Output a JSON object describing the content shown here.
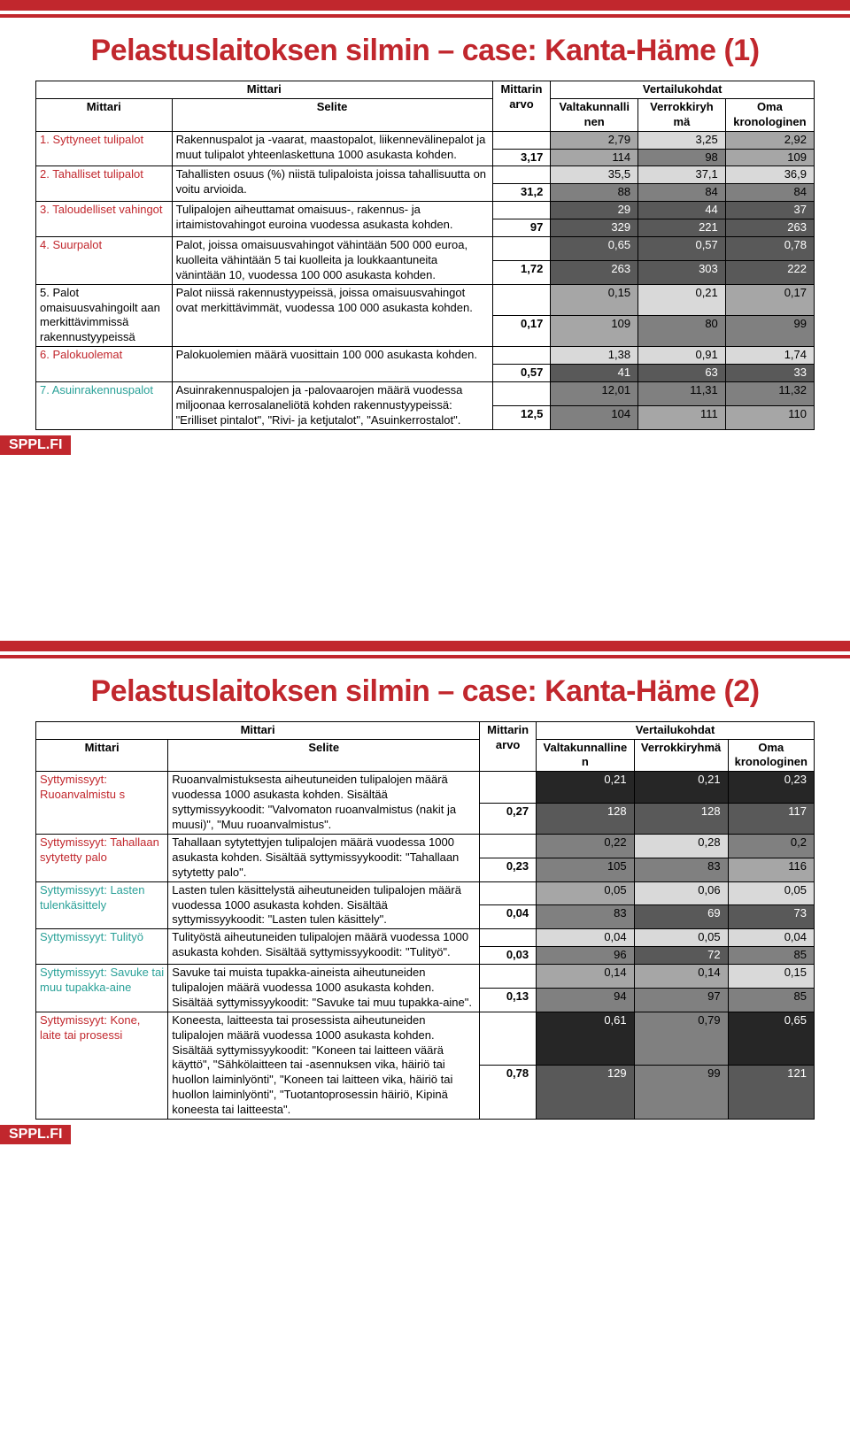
{
  "footer": "SPPL.FI",
  "colors": {
    "accent_red": "#c1272d",
    "accent_teal": "#2aa198",
    "shade_lt": "#d9d9d9",
    "shade_md": "#a6a6a6",
    "shade_dk": "#808080",
    "shade_vd": "#595959",
    "shade_blk": "#262626"
  },
  "slide1": {
    "title": "Pelastuslaitoksen silmin – case: Kanta-Häme (1)",
    "header_group_mittari": "Mittari",
    "header_group_vertailu": "Vertailukohdat",
    "col_mittari": "Mittari",
    "col_selite": "Selite",
    "col_arvo_l1": "Mittarin",
    "col_arvo_l2": "arvo",
    "col_v1_l1": "Valtakunnalli",
    "col_v1_l2": "nen",
    "col_v2_l1": "Verrokkiryh",
    "col_v2_l2": "mä",
    "col_v3_l1": "Oma",
    "col_v3_l2": "kronologinen",
    "rows": [
      {
        "label": "1. Syttyneet tulipalot",
        "label_cls": "label-red",
        "selite": "Rakennuspalot ja -vaarat, maastopalot, liikennevälinepalot ja muut tulipalot yhteenlaskettuna 1000 asukasta kohden.",
        "arvo": "3,17",
        "top": {
          "v1": "2,79",
          "v2": "3,25",
          "v3": "2,92",
          "s1": "sh-md",
          "s2": "sh-lt",
          "s3": "sh-md"
        },
        "bot": {
          "v1": "114",
          "v2": "98",
          "v3": "109",
          "s1": "sh-md",
          "s2": "sh-dk",
          "s3": "sh-md"
        }
      },
      {
        "label": "2. Tahalliset tulipalot",
        "label_cls": "label-red",
        "selite": "Tahallisten osuus (%) niistä tulipaloista joissa tahallisuutta on voitu arvioida.",
        "arvo": "31,2",
        "top": {
          "v1": "35,5",
          "v2": "37,1",
          "v3": "36,9",
          "s1": "sh-lt",
          "s2": "sh-lt",
          "s3": "sh-lt"
        },
        "bot": {
          "v1": "88",
          "v2": "84",
          "v3": "84",
          "s1": "sh-dk",
          "s2": "sh-dk",
          "s3": "sh-dk"
        }
      },
      {
        "label": "3. Taloudelliset vahingot",
        "label_cls": "label-red",
        "selite": "Tulipalojen aiheuttamat omaisuus-, rakennus- ja irtaimistovahingot euroina vuodessa asukasta kohden.",
        "arvo": "97",
        "top": {
          "v1": "29",
          "v2": "44",
          "v3": "37",
          "s1": "sh-vd",
          "s2": "sh-vd",
          "s3": "sh-vd"
        },
        "bot": {
          "v1": "329",
          "v2": "221",
          "v3": "263",
          "s1": "sh-vd",
          "s2": "sh-vd",
          "s3": "sh-vd"
        }
      },
      {
        "label": "4. Suurpalot",
        "label_cls": "label-red",
        "selite": "Palot, joissa omaisuusvahingot vähintään 500 000 euroa, kuolleita vähintään 5 tai kuolleita ja loukkaantuneita vänintään 10, vuodessa 100 000 asukasta kohden.",
        "arvo": "1,72",
        "top": {
          "v1": "0,65",
          "v2": "0,57",
          "v3": "0,78",
          "s1": "sh-vd",
          "s2": "sh-vd",
          "s3": "sh-vd"
        },
        "bot": {
          "v1": "263",
          "v2": "303",
          "v3": "222",
          "s1": "sh-vd",
          "s2": "sh-vd",
          "s3": "sh-vd"
        }
      },
      {
        "label": "5. Palot omaisuusvahingoilt aan merkittävimmissä rakennustyypeissä",
        "label_cls": "",
        "selite": "Palot niissä rakennustyypeissä, joissa omaisuusvahingot ovat merkittävimmät, vuodessa 100 000 asukasta kohden.",
        "arvo": "0,17",
        "top": {
          "v1": "0,15",
          "v2": "0,21",
          "v3": "0,17",
          "s1": "sh-md",
          "s2": "sh-lt",
          "s3": "sh-md"
        },
        "bot": {
          "v1": "109",
          "v2": "80",
          "v3": "99",
          "s1": "sh-md",
          "s2": "sh-dk",
          "s3": "sh-dk"
        }
      },
      {
        "label": "6. Palokuolemat",
        "label_cls": "label-red",
        "selite": "Palokuolemien määrä vuosittain 100 000 asukasta kohden.",
        "arvo": "0,57",
        "top": {
          "v1": "1,38",
          "v2": "0,91",
          "v3": "1,74",
          "s1": "sh-lt",
          "s2": "sh-lt",
          "s3": "sh-lt"
        },
        "bot": {
          "v1": "41",
          "v2": "63",
          "v3": "33",
          "s1": "sh-vd",
          "s2": "sh-vd",
          "s3": "sh-vd"
        }
      },
      {
        "label": "7. Asuinrakennuspalot",
        "label_cls": "label-teal",
        "selite": "Asuinrakennuspalojen ja -palovaarojen määrä vuodessa miljoonaa kerrosalaneliötä kohden rakennustyypeissä: \"Erilliset pintalot\", \"Rivi- ja ketjutalot\", \"Asuinkerrostalot\".",
        "arvo": "12,5",
        "top": {
          "v1": "12,01",
          "v2": "11,31",
          "v3": "11,32",
          "s1": "sh-dk",
          "s2": "sh-dk",
          "s3": "sh-dk"
        },
        "bot": {
          "v1": "104",
          "v2": "111",
          "v3": "110",
          "s1": "sh-dk",
          "s2": "sh-md",
          "s3": "sh-md"
        }
      }
    ]
  },
  "slide2": {
    "title": "Pelastuslaitoksen silmin – case: Kanta-Häme (2)",
    "header_group_mittari": "Mittari",
    "header_group_vertailu": "Vertailukohdat",
    "col_mittari": "Mittari",
    "col_selite": "Selite",
    "col_arvo_l1": "Mittarin",
    "col_arvo_l2": "arvo",
    "col_v1_l1": "Valtakunnalline",
    "col_v1_l2": "n",
    "col_v2": "Verrokkiryhmä",
    "col_v3_l1": "Oma",
    "col_v3_l2": "kronologinen",
    "rows": [
      {
        "label": "Syttymissyyt: Ruoanvalmistu s",
        "label_cls": "label-red",
        "selite": "Ruoanvalmistuksesta aiheutuneiden tulipalojen määrä vuodessa 1000 asukasta kohden. Sisältää syttymissyykoodit: \"Valvomaton ruoanvalmistus (nakit ja muusi)\", \"Muu ruoanvalmistus\".",
        "arvo": "0,27",
        "top": {
          "v1": "0,21",
          "v2": "0,21",
          "v3": "0,23",
          "s1": "sh-blk",
          "s2": "sh-blk",
          "s3": "sh-blk"
        },
        "bot": {
          "v1": "128",
          "v2": "128",
          "v3": "117",
          "s1": "sh-vd",
          "s2": "sh-vd",
          "s3": "sh-vd"
        }
      },
      {
        "label": "Syttymissyyt: Tahallaan sytytetty palo",
        "label_cls": "label-red",
        "selite": "Tahallaan sytytettyjen tulipalojen määrä vuodessa 1000 asukasta kohden. Sisältää syttymissyykoodit: \"Tahallaan sytytetty palo\".",
        "arvo": "0,23",
        "top": {
          "v1": "0,22",
          "v2": "0,28",
          "v3": "0,2",
          "s1": "sh-dk",
          "s2": "sh-lt",
          "s3": "sh-dk"
        },
        "bot": {
          "v1": "105",
          "v2": "83",
          "v3": "116",
          "s1": "sh-dk",
          "s2": "sh-dk",
          "s3": "sh-md"
        }
      },
      {
        "label": "Syttymissyyt: Lasten tulenkäsittely",
        "label_cls": "label-teal",
        "selite": "Lasten tulen käsittelystä aiheutuneiden tulipalojen määrä vuodessa 1000 asukasta kohden. Sisältää syttymissyykoodit: \"Lasten tulen käsittely\".",
        "arvo": "0,04",
        "top": {
          "v1": "0,05",
          "v2": "0,06",
          "v3": "0,05",
          "s1": "sh-md",
          "s2": "sh-lt",
          "s3": "sh-lt"
        },
        "bot": {
          "v1": "83",
          "v2": "69",
          "v3": "73",
          "s1": "sh-dk",
          "s2": "sh-vd",
          "s3": "sh-vd"
        }
      },
      {
        "label": "Syttymissyyt: Tulityö",
        "label_cls": "label-teal",
        "selite": "Tulityöstä aiheutuneiden tulipalojen määrä vuodessa 1000 asukasta kohden. Sisältää syttymissyykoodit: \"Tulityö\".",
        "arvo": "0,03",
        "top": {
          "v1": "0,04",
          "v2": "0,05",
          "v3": "0,04",
          "s1": "sh-lt",
          "s2": "sh-lt",
          "s3": "sh-lt"
        },
        "bot": {
          "v1": "96",
          "v2": "72",
          "v3": "85",
          "s1": "sh-dk",
          "s2": "sh-vd",
          "s3": "sh-dk"
        }
      },
      {
        "label": "Syttymissyyt: Savuke tai muu tupakka-aine",
        "label_cls": "label-teal",
        "selite": "Savuke tai muista tupakka-aineista aiheutuneiden tulipalojen määrä vuodessa 1000 asukasta kohden. Sisältää syttymissyykoodit: \"Savuke tai muu tupakka-aine\".",
        "arvo": "0,13",
        "top": {
          "v1": "0,14",
          "v2": "0,14",
          "v3": "0,15",
          "s1": "sh-md",
          "s2": "sh-md",
          "s3": "sh-lt"
        },
        "bot": {
          "v1": "94",
          "v2": "97",
          "v3": "85",
          "s1": "sh-dk",
          "s2": "sh-dk",
          "s3": "sh-dk"
        }
      },
      {
        "label": "Syttymissyyt: Kone, laite tai prosessi",
        "label_cls": "label-red",
        "selite": "Koneesta, laitteesta tai prosessista aiheutuneiden tulipalojen määrä vuodessa 1000 asukasta kohden. Sisältää syttymissyykoodit: \"Koneen tai laitteen väärä käyttö\", \"Sähkölaitteen tai -asennuksen vika, häiriö tai huollon laiminlyönti\", \"Koneen tai laitteen vika, häiriö tai huollon laiminlyönti\", \"Tuotantoprosessin häiriö, Kipinä koneesta tai laitteesta\".",
        "arvo": "0,78",
        "top": {
          "v1": "0,61",
          "v2": "0,79",
          "v3": "0,65",
          "s1": "sh-blk",
          "s2": "sh-dk",
          "s3": "sh-blk"
        },
        "bot": {
          "v1": "129",
          "v2": "99",
          "v3": "121",
          "s1": "sh-vd",
          "s2": "sh-dk",
          "s3": "sh-vd"
        }
      }
    ]
  }
}
